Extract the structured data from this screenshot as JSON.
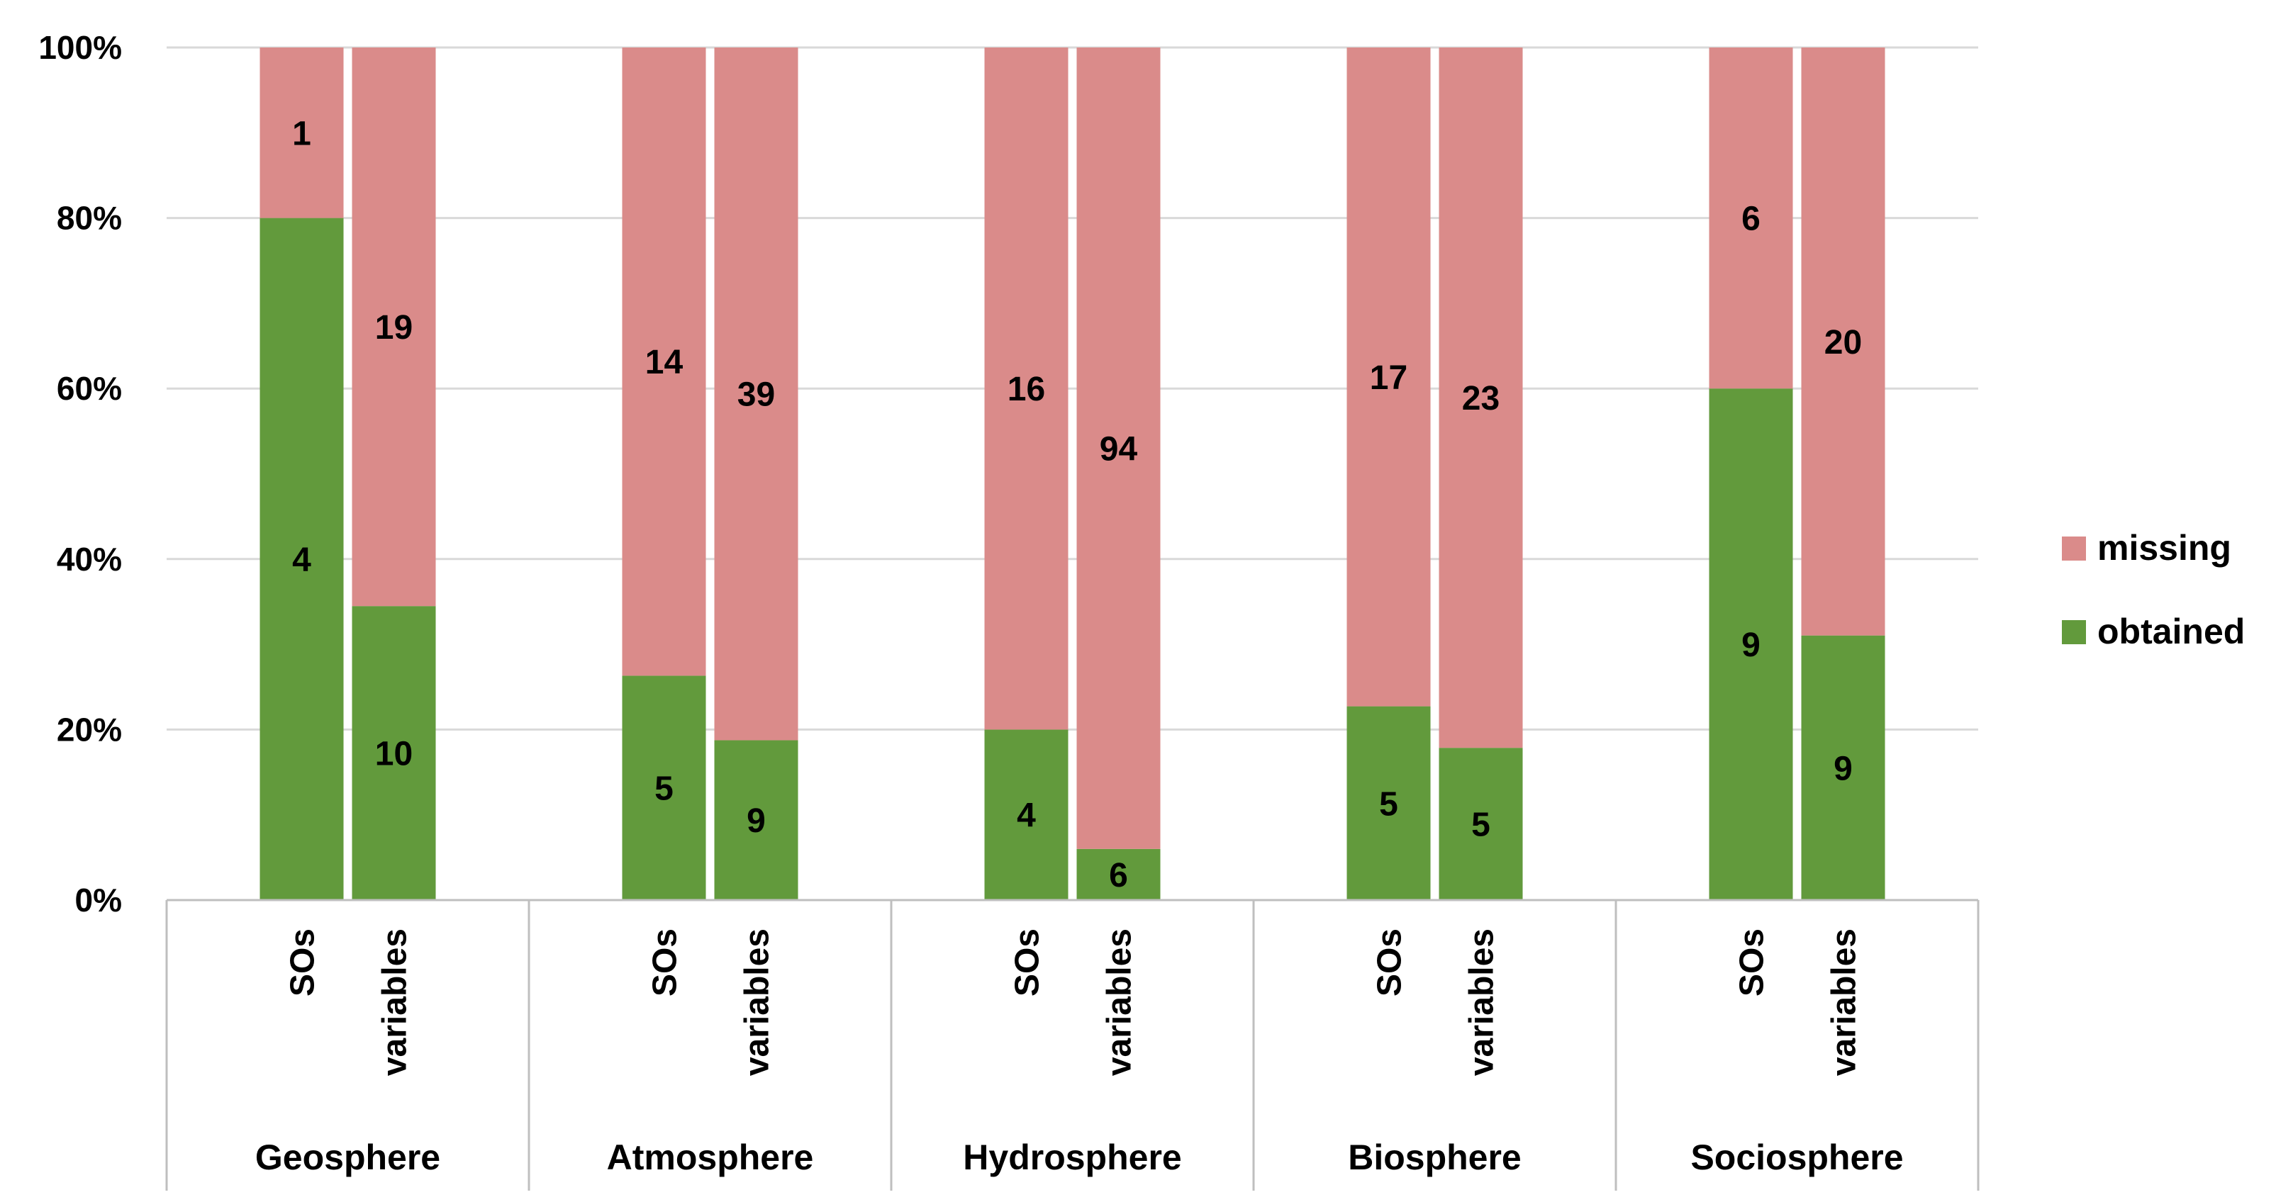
{
  "chart_data": {
    "type": "bar",
    "stacked": "percent",
    "groups": [
      "Geosphere",
      "Atmosphere",
      "Hydrosphere",
      "Biosphere",
      "Sociosphere"
    ],
    "subcategories": [
      "SOs",
      "variables"
    ],
    "series": [
      {
        "name": "obtained",
        "color": "#629a3c",
        "values": [
          [
            4,
            10
          ],
          [
            5,
            9
          ],
          [
            4,
            6
          ],
          [
            5,
            5
          ],
          [
            9,
            9
          ]
        ]
      },
      {
        "name": "missing",
        "color": "#da8b8a",
        "values": [
          [
            1,
            19
          ],
          [
            14,
            39
          ],
          [
            16,
            94
          ],
          [
            17,
            23
          ],
          [
            6,
            20
          ]
        ]
      }
    ],
    "y_ticks": [
      "0%",
      "20%",
      "40%",
      "60%",
      "80%",
      "100%"
    ],
    "ylim": [
      0,
      100
    ],
    "grid": true,
    "legend": {
      "position": "right",
      "order": [
        "missing",
        "obtained"
      ]
    },
    "colors": {
      "grid": "#d9d9d9",
      "axis": "#bfbfbf"
    }
  }
}
